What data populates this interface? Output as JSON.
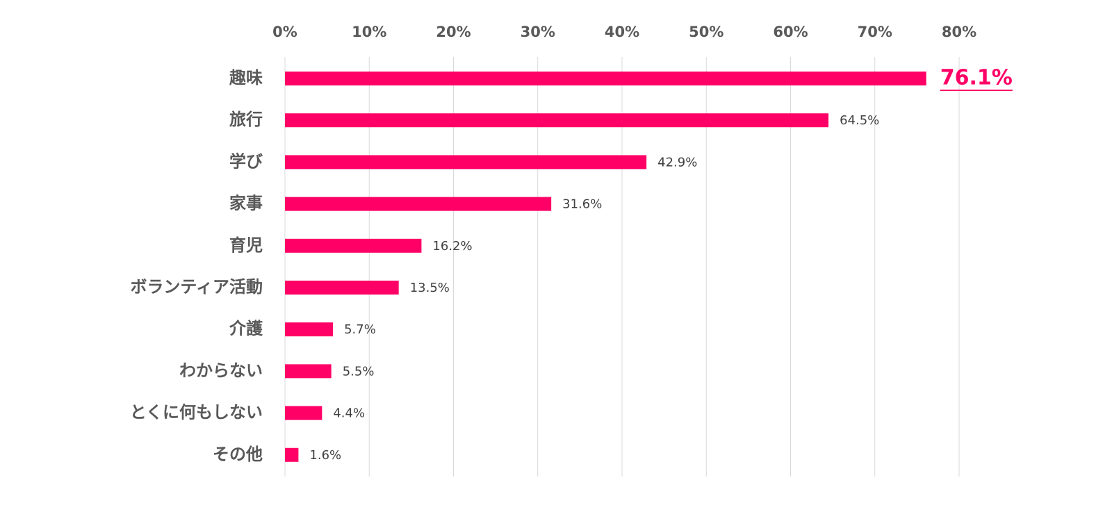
{
  "chart_data": {
    "type": "bar",
    "orientation": "horizontal",
    "categories": [
      "趣味",
      "旅行",
      "学び",
      "家事",
      "育児",
      "ボランティア活動",
      "介護",
      "わからない",
      "とくに何もしない",
      "その他"
    ],
    "values": [
      76.1,
      64.5,
      42.9,
      31.6,
      16.2,
      13.5,
      5.7,
      5.5,
      4.4,
      1.6
    ],
    "value_labels": [
      "76.1%",
      "64.5%",
      "42.9%",
      "31.6%",
      "16.2%",
      "13.5%",
      "5.7%",
      "5.5%",
      "4.4%",
      "1.6%"
    ],
    "x_ticks": [
      0,
      10,
      20,
      30,
      40,
      50,
      60,
      70,
      80
    ],
    "x_tick_labels": [
      "0%",
      "10%",
      "20%",
      "30%",
      "40%",
      "50%",
      "60%",
      "70%",
      "80%"
    ],
    "xlim": [
      0,
      80
    ],
    "x_axis_position": "top",
    "grid": true,
    "highlight_index": 0,
    "colors": {
      "bar": "#ff0066",
      "highlight_text": "#ff0066",
      "grid": "#d9d9d9",
      "axis_text": "#595959",
      "value_text": "#404040"
    }
  }
}
